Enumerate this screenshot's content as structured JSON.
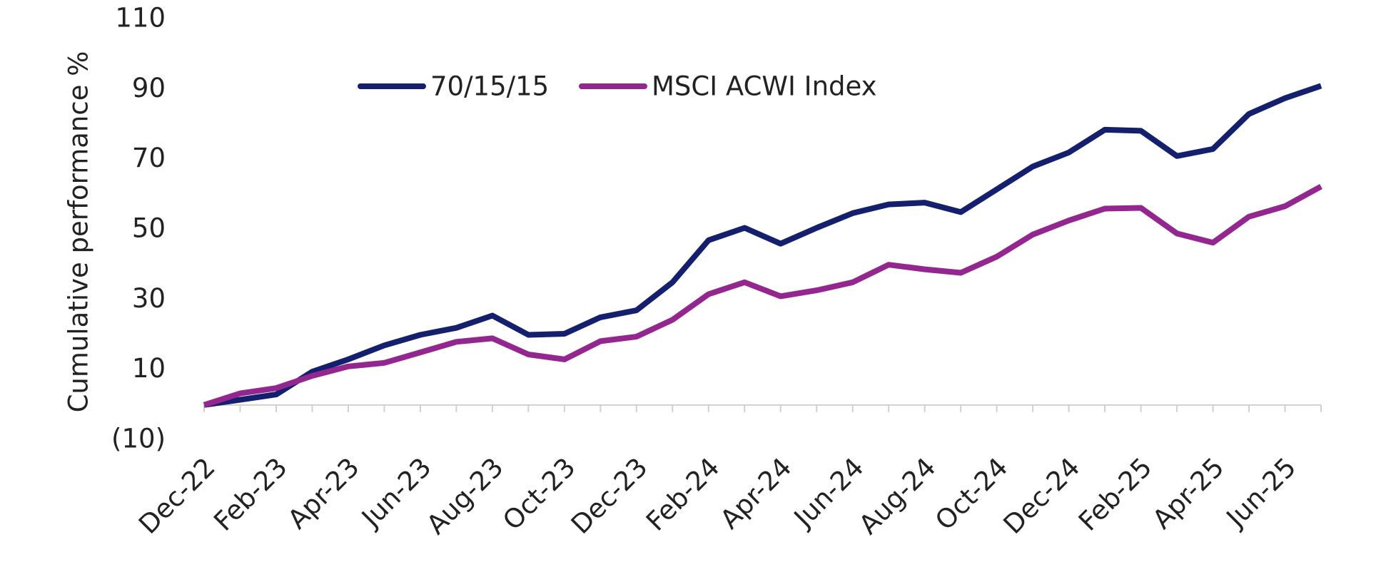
{
  "chart_data": {
    "type": "line",
    "y_label": "Cumulative performance %",
    "categories": [
      "Dec-22",
      null,
      "Feb-23",
      null,
      "Apr-23",
      null,
      "Jun-23",
      null,
      "Aug-23",
      null,
      "Oct-23",
      null,
      "Dec-23",
      null,
      "Feb-24",
      null,
      "Apr-24",
      null,
      "Jun-24",
      null,
      "Aug-24",
      null,
      "Oct-24",
      null,
      "Dec-24",
      null,
      "Feb-25",
      null,
      "Apr-25",
      null,
      "Jun-25",
      null
    ],
    "series": [
      {
        "name": "70/15/15",
        "color": "#14206e",
        "values": [
          0,
          1.5,
          3,
          9.5,
          13,
          17,
          20,
          22,
          25.5,
          20,
          20.3,
          25,
          27,
          35,
          47,
          50.5,
          46,
          50.5,
          54.7,
          57.2,
          57.7,
          55,
          61.5,
          68,
          72,
          78.5,
          78.2,
          71,
          73,
          83,
          87.5,
          91
        ]
      },
      {
        "name": "MSCI ACWI Index",
        "color": "#93278f",
        "values": [
          0,
          3.3,
          4.8,
          8.3,
          11,
          12,
          15,
          18,
          19,
          14.4,
          13,
          18.2,
          19.5,
          24.3,
          31.6,
          35,
          31,
          32.7,
          35,
          40,
          38.7,
          37.7,
          42.3,
          48.6,
          52.6,
          56,
          56.2,
          48.9,
          46.3,
          53.7,
          56.7,
          62.3
        ]
      }
    ],
    "ylim": [
      -10,
      110
    ],
    "yticks": [
      {
        "value": -10,
        "label": "(10)"
      },
      10,
      30,
      50,
      70,
      90,
      110
    ],
    "legend": "top"
  }
}
